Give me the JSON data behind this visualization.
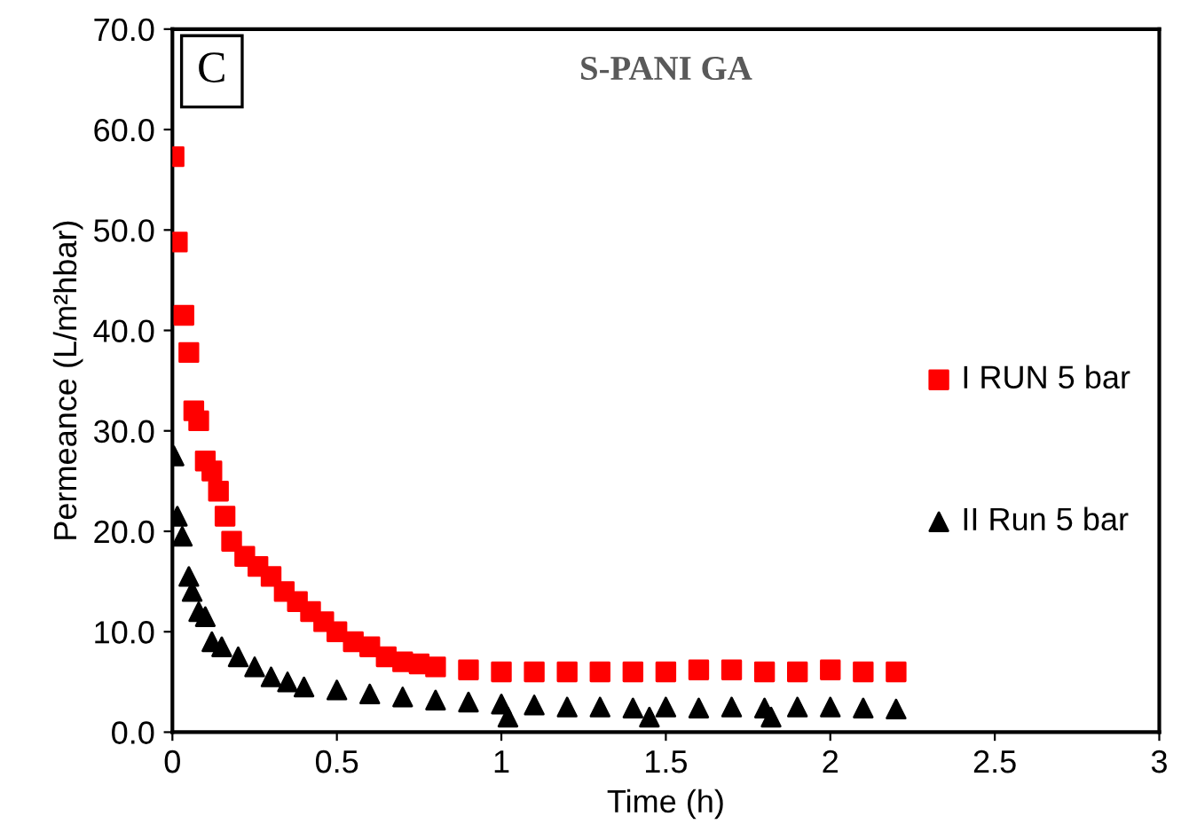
{
  "chart_data": {
    "type": "scatter",
    "title": "S-PANI GA",
    "xlabel": "Time (h)",
    "ylabel": "Permeance (L/m²hbar)",
    "annotations": [
      "C"
    ],
    "xlim": [
      0,
      3
    ],
    "xticks": [
      0,
      0.5,
      1,
      1.5,
      2,
      2.5,
      3
    ],
    "ylim": [
      0,
      70
    ],
    "yticks": [
      {
        "value": 0,
        "label": "0.0"
      },
      {
        "value": 10,
        "label": "10.0"
      },
      {
        "value": 20,
        "label": "20.0"
      },
      {
        "value": 30,
        "label": "30.0"
      },
      {
        "value": 40,
        "label": "40.0"
      },
      {
        "value": 50,
        "label": "50.0"
      },
      {
        "value": 60,
        "label": "60.0"
      },
      {
        "value": 70,
        "label": "70.0"
      }
    ],
    "grid": false,
    "legend": "right",
    "series": [
      {
        "name": "I RUN 5 bar",
        "color": "#ff0000",
        "marker": "square",
        "x": [
          0.005,
          0.015,
          0.035,
          0.05,
          0.065,
          0.08,
          0.1,
          0.12,
          0.14,
          0.16,
          0.18,
          0.22,
          0.26,
          0.3,
          0.34,
          0.38,
          0.42,
          0.46,
          0.5,
          0.55,
          0.6,
          0.65,
          0.7,
          0.75,
          0.8,
          0.9,
          1.0,
          1.1,
          1.2,
          1.3,
          1.4,
          1.5,
          1.6,
          1.7,
          1.8,
          1.9,
          2.0,
          2.1,
          2.2
        ],
        "values": [
          57.3,
          48.8,
          41.5,
          37.8,
          32,
          31,
          27,
          26,
          24,
          21.5,
          19,
          17.5,
          16.5,
          15.5,
          14,
          13,
          12,
          11,
          10,
          9,
          8.5,
          7.5,
          7,
          6.8,
          6.5,
          6.2,
          6.0,
          6.0,
          6.0,
          6.0,
          6.0,
          6.0,
          6.2,
          6.2,
          6.0,
          6.0,
          6.2,
          6.0,
          6.0
        ]
      },
      {
        "name": "II Run 5 bar",
        "color": "#000000",
        "marker": "triangle",
        "x": [
          0.005,
          0.015,
          0.03,
          0.05,
          0.06,
          0.08,
          0.1,
          0.12,
          0.15,
          0.2,
          0.25,
          0.3,
          0.35,
          0.4,
          0.5,
          0.6,
          0.7,
          0.8,
          0.9,
          1.0,
          1.02,
          1.1,
          1.2,
          1.3,
          1.4,
          1.45,
          1.5,
          1.6,
          1.7,
          1.8,
          1.82,
          1.9,
          2.0,
          2.1,
          2.2
        ],
        "values": [
          27.5,
          21.5,
          19.5,
          15.5,
          14,
          12,
          11.5,
          9,
          8.5,
          7.5,
          6.5,
          5.5,
          5,
          4.5,
          4.2,
          3.8,
          3.5,
          3.2,
          3.0,
          2.8,
          1.5,
          2.7,
          2.5,
          2.5,
          2.4,
          1.5,
          2.5,
          2.4,
          2.5,
          2.4,
          1.5,
          2.5,
          2.5,
          2.4,
          2.3
        ]
      }
    ]
  }
}
